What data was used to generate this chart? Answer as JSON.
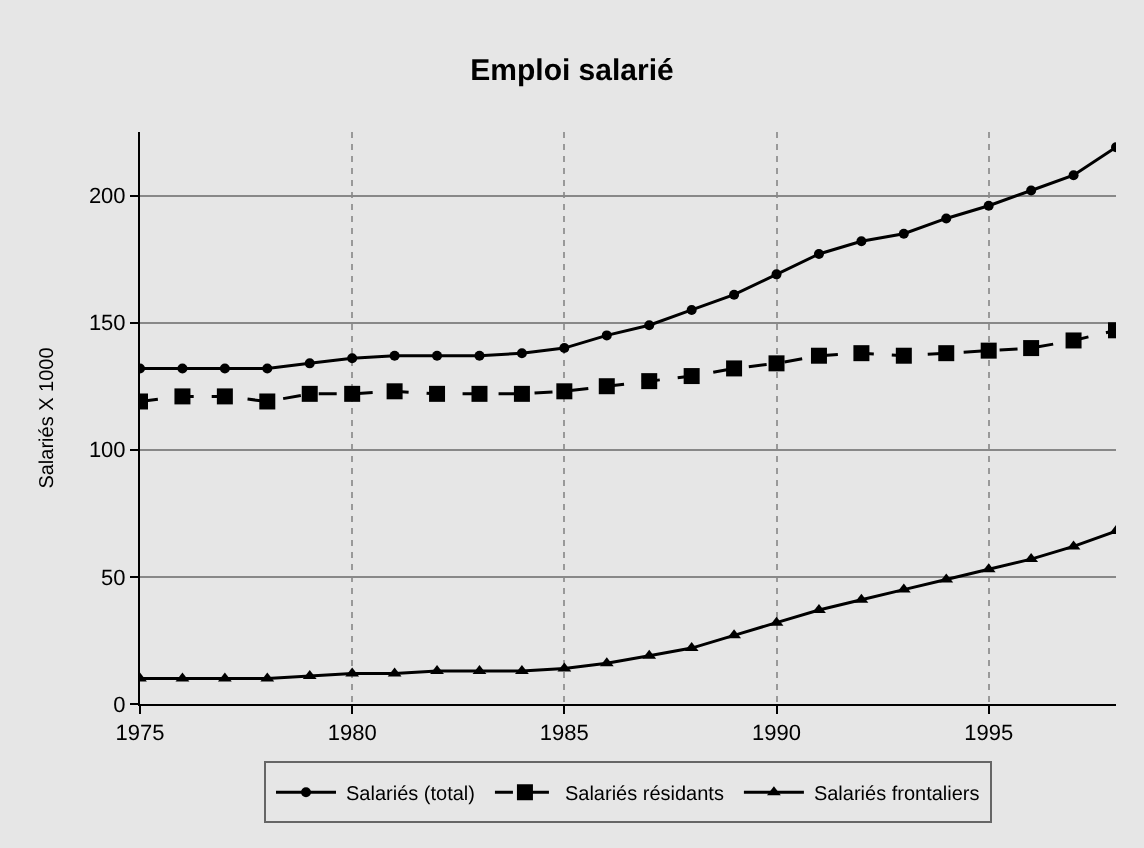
{
  "chart_data": {
    "type": "line",
    "title": "Emploi salarié",
    "ylabel": "Salariés X 1000",
    "x": [
      1975,
      1976,
      1977,
      1978,
      1979,
      1980,
      1981,
      1982,
      1983,
      1984,
      1985,
      1986,
      1987,
      1988,
      1989,
      1990,
      1991,
      1992,
      1993,
      1994,
      1995,
      1996,
      1997,
      1998
    ],
    "series": [
      {
        "name": "Salariés (total)",
        "color": "#000000",
        "marker": "circle",
        "line_style": "solid",
        "values": [
          132,
          132,
          132,
          132,
          134,
          136,
          137,
          137,
          137,
          138,
          140,
          145,
          149,
          155,
          161,
          169,
          177,
          182,
          185,
          191,
          196,
          202,
          208,
          219
        ]
      },
      {
        "name": "Salariés résidants",
        "color": "#000000",
        "marker": "square",
        "line_style": "dashed",
        "values": [
          119,
          121,
          121,
          119,
          122,
          122,
          123,
          122,
          122,
          122,
          123,
          125,
          127,
          129,
          132,
          134,
          137,
          138,
          137,
          138,
          139,
          140,
          143,
          147
        ]
      },
      {
        "name": "Salariés frontaliers",
        "color": "#000000",
        "marker": "triangle",
        "line_style": "solid",
        "values": [
          10,
          10,
          10,
          10,
          11,
          12,
          12,
          13,
          13,
          13,
          14,
          16,
          19,
          22,
          27,
          32,
          37,
          41,
          45,
          49,
          53,
          57,
          62,
          68
        ]
      }
    ],
    "xlim": [
      1975,
      1998
    ],
    "xticks": [
      1975,
      1980,
      1985,
      1990,
      1995
    ],
    "ylim": [
      0,
      225
    ],
    "yticks": [
      0,
      50,
      100,
      150,
      200
    ],
    "grid": true,
    "legend": "bottom"
  }
}
